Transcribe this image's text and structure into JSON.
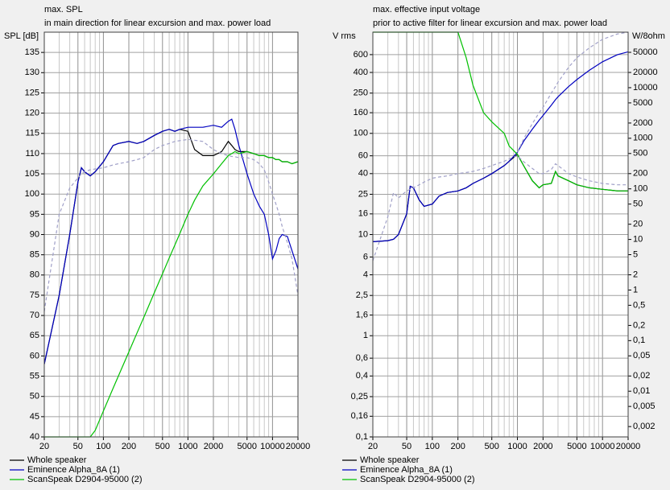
{
  "chart_data": [
    {
      "type": "line",
      "title": "max. SPL",
      "subtitle": "in main direction for linear excursion and max. power load",
      "ylabel": "SPL [dB]",
      "xscale": "log",
      "yscale": "linear",
      "grid": true,
      "xlim": [
        20,
        20000
      ],
      "ylim": [
        40,
        140
      ],
      "xticks": [
        20,
        50,
        100,
        200,
        500,
        1000,
        2000,
        5000,
        10000,
        20000
      ],
      "xminor": [
        30,
        40,
        60,
        70,
        80,
        90,
        300,
        400,
        600,
        700,
        800,
        900,
        3000,
        4000,
        6000,
        7000,
        8000,
        9000
      ],
      "yticks": [
        40,
        45,
        50,
        55,
        60,
        65,
        70,
        75,
        80,
        85,
        90,
        95,
        100,
        105,
        110,
        115,
        120,
        125,
        130,
        135
      ],
      "x": [
        20,
        30,
        40,
        50,
        55,
        60,
        70,
        80,
        100,
        130,
        150,
        200,
        250,
        300,
        400,
        500,
        600,
        700,
        800,
        1000,
        1200,
        1500,
        2000,
        2500,
        3000,
        3300,
        3600,
        4000,
        5000,
        6000,
        7000,
        8000,
        9000,
        10000,
        11000,
        12000,
        13000,
        15000,
        17000,
        20000
      ],
      "series": [
        {
          "name": "Whole speaker",
          "color": "#000000",
          "values": [
            58,
            75,
            90,
            103,
            106.5,
            105.5,
            104.5,
            105.5,
            108,
            112,
            112.5,
            113,
            112.5,
            113,
            114.5,
            115.5,
            116,
            115.5,
            116,
            115.5,
            111,
            109.5,
            109.5,
            110.5,
            113,
            112,
            111,
            110.5,
            110.5,
            110,
            109.5,
            109.5,
            109,
            109,
            108.5,
            108.5,
            108,
            108,
            107.5,
            108
          ]
        },
        {
          "name": "Eminence Alpha_8A (1)",
          "color": "#0000c0",
          "values": [
            58,
            75,
            90,
            103,
            106.5,
            105.5,
            104.5,
            105.5,
            108,
            112,
            112.5,
            113,
            112.5,
            113,
            114.5,
            115.5,
            116,
            115.5,
            116,
            116.5,
            116.5,
            116.5,
            117,
            116.5,
            118,
            118.5,
            116,
            112,
            105,
            100,
            97,
            95,
            90,
            84,
            86,
            89,
            90,
            89.5,
            86,
            81.5
          ]
        },
        {
          "name": "ScanSpeak D2904-95000 (2)",
          "color": "#00c000",
          "values": [
            40,
            40,
            40,
            40,
            40,
            40,
            40,
            41.6,
            46.4,
            52,
            55,
            61,
            65.7,
            69.5,
            75.6,
            80.3,
            84.2,
            87.4,
            90.2,
            95,
            98.5,
            102,
            105,
            107.5,
            109.5,
            110,
            110.5,
            110,
            110.5,
            110,
            109.5,
            109.5,
            109,
            109,
            108.5,
            108.5,
            108,
            108,
            107.5,
            108
          ]
        },
        {
          "color": "#a0a0c8",
          "dashed": true,
          "values": [
            71,
            95,
            101.5,
            104,
            105,
            105.5,
            106,
            106.2,
            106.5,
            107.2,
            107.5,
            108,
            108.5,
            109,
            111,
            112,
            112.5,
            113,
            113.2,
            113.5,
            113.3,
            113,
            111,
            110,
            109.5,
            109.3,
            109.2,
            109,
            109,
            108.5,
            107.5,
            106,
            103,
            100,
            97.5,
            95,
            92,
            88,
            84,
            75
          ]
        }
      ]
    },
    {
      "type": "line",
      "title": "max. effective input voltage",
      "subtitle": "prior to active filter for linear excursion and max. power load",
      "ylabel": "V rms",
      "y2label": "W/8ohm",
      "xscale": "log",
      "yscale": "log",
      "y2scale": "log",
      "grid": true,
      "xlim": [
        20,
        20000
      ],
      "ylim": [
        0.1,
        1000
      ],
      "y2lim": [
        0.00125,
        125000
      ],
      "xticks": [
        20,
        50,
        100,
        200,
        500,
        1000,
        2000,
        5000,
        10000,
        20000
      ],
      "xminor": [
        30,
        40,
        60,
        70,
        80,
        90,
        300,
        400,
        600,
        700,
        800,
        900,
        3000,
        4000,
        6000,
        7000,
        8000,
        9000
      ],
      "yticks": [
        {
          "value": 0.1,
          "label": "0,1"
        },
        {
          "value": 0.16,
          "label": "0,16"
        },
        {
          "value": 0.25,
          "label": "0,25"
        },
        {
          "value": 0.4,
          "label": "0,4"
        },
        {
          "value": 0.6,
          "label": "0,6"
        },
        1,
        {
          "value": 1.6,
          "label": "1,6"
        },
        {
          "value": 2.5,
          "label": "2,5"
        },
        4,
        6,
        10,
        16,
        25,
        40,
        60,
        100,
        160,
        250,
        400,
        600
      ],
      "y2ticks": [
        {
          "value": 0.002,
          "label": "0,002"
        },
        {
          "value": 0.005,
          "label": "0,005"
        },
        {
          "value": 0.01,
          "label": "0,01"
        },
        {
          "value": 0.02,
          "label": "0,02"
        },
        {
          "value": 0.05,
          "label": "0,05"
        },
        {
          "value": 0.1,
          "label": "0,1"
        },
        {
          "value": 0.2,
          "label": "0,2"
        },
        {
          "value": 0.5,
          "label": "0,5"
        },
        1,
        2,
        5,
        10,
        20,
        50,
        100,
        200,
        500,
        1000,
        2000,
        5000,
        10000,
        20000,
        50000
      ],
      "x": [
        20,
        30,
        35,
        40,
        50,
        55,
        60,
        70,
        80,
        100,
        120,
        150,
        200,
        250,
        300,
        400,
        500,
        700,
        800,
        1000,
        1200,
        1500,
        1800,
        2000,
        2500,
        2800,
        3000,
        4000,
        5000,
        7000,
        10000,
        15000,
        20000
      ],
      "series": [
        {
          "name": "Whole speaker",
          "color": "#000000",
          "values": [
            8.5,
            8.7,
            9,
            10,
            16,
            30,
            29,
            22,
            19,
            20,
            24,
            26,
            27,
            29,
            32,
            36,
            40,
            48,
            53,
            62,
            47,
            34,
            29,
            31,
            32,
            42,
            38,
            34,
            31,
            29,
            28,
            27,
            27
          ]
        },
        {
          "name": "Eminence Alpha_8A (1)",
          "color": "#0000c0",
          "values": [
            8.5,
            8.7,
            9,
            10,
            16,
            30,
            29,
            22,
            19,
            20,
            24,
            26,
            27,
            29,
            32,
            36,
            40,
            48,
            53,
            65,
            85,
            110,
            135,
            150,
            190,
            215,
            230,
            290,
            340,
            420,
            510,
            600,
            640
          ]
        },
        {
          "name": "ScanSpeak D2904-95000 (2)",
          "color": "#00c000",
          "values": [
            1000,
            1000,
            1000,
            1000,
            1000,
            1000,
            1000,
            1000,
            1000,
            1000,
            1000,
            1000,
            1000,
            560,
            300,
            160,
            130,
            100,
            75,
            62,
            47,
            34,
            29,
            31,
            32,
            42,
            38,
            34,
            31,
            29,
            28,
            27,
            27
          ]
        },
        {
          "color": "#a0a0c8",
          "dashed": true,
          "values": [
            5.5,
            15,
            26,
            23,
            27,
            28,
            29,
            31,
            33,
            36,
            37,
            38,
            40,
            41,
            42,
            45,
            48,
            53,
            56,
            60,
            52,
            45,
            40,
            40,
            44,
            50,
            48,
            40,
            37,
            34,
            32,
            31,
            31
          ]
        },
        {
          "color": "#a0a0c8",
          "dashed": true,
          "values": [
            null,
            null,
            null,
            null,
            null,
            null,
            null,
            null,
            null,
            null,
            null,
            null,
            null,
            null,
            null,
            null,
            null,
            null,
            null,
            65,
            90,
            125,
            160,
            180,
            250,
            290,
            320,
            450,
            560,
            700,
            850,
            960,
            1000
          ]
        }
      ]
    }
  ]
}
